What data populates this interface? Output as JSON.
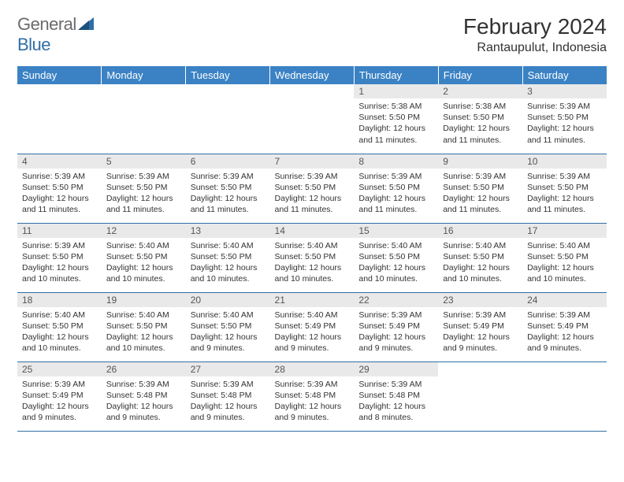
{
  "brand": {
    "part1": "General",
    "part2": "Blue"
  },
  "title": "February 2024",
  "location": "Rantaupulut, Indonesia",
  "colors": {
    "header_bg": "#3b82c4",
    "rule": "#2f6fa8",
    "daynum_bg": "#e9e9e9",
    "text": "#333333",
    "brand_gray": "#6b6b6b",
    "brand_blue": "#2f6fa8"
  },
  "typography": {
    "title_fontsize": 28,
    "location_fontsize": 16,
    "weekday_fontsize": 13,
    "daynum_fontsize": 12,
    "body_fontsize": 10.5
  },
  "weekdays": [
    "Sunday",
    "Monday",
    "Tuesday",
    "Wednesday",
    "Thursday",
    "Friday",
    "Saturday"
  ],
  "weeks": [
    [
      null,
      null,
      null,
      null,
      {
        "n": "1",
        "sunrise": "Sunrise: 5:38 AM",
        "sunset": "Sunset: 5:50 PM",
        "daylight": "Daylight: 12 hours and 11 minutes."
      },
      {
        "n": "2",
        "sunrise": "Sunrise: 5:38 AM",
        "sunset": "Sunset: 5:50 PM",
        "daylight": "Daylight: 12 hours and 11 minutes."
      },
      {
        "n": "3",
        "sunrise": "Sunrise: 5:39 AM",
        "sunset": "Sunset: 5:50 PM",
        "daylight": "Daylight: 12 hours and 11 minutes."
      }
    ],
    [
      {
        "n": "4",
        "sunrise": "Sunrise: 5:39 AM",
        "sunset": "Sunset: 5:50 PM",
        "daylight": "Daylight: 12 hours and 11 minutes."
      },
      {
        "n": "5",
        "sunrise": "Sunrise: 5:39 AM",
        "sunset": "Sunset: 5:50 PM",
        "daylight": "Daylight: 12 hours and 11 minutes."
      },
      {
        "n": "6",
        "sunrise": "Sunrise: 5:39 AM",
        "sunset": "Sunset: 5:50 PM",
        "daylight": "Daylight: 12 hours and 11 minutes."
      },
      {
        "n": "7",
        "sunrise": "Sunrise: 5:39 AM",
        "sunset": "Sunset: 5:50 PM",
        "daylight": "Daylight: 12 hours and 11 minutes."
      },
      {
        "n": "8",
        "sunrise": "Sunrise: 5:39 AM",
        "sunset": "Sunset: 5:50 PM",
        "daylight": "Daylight: 12 hours and 11 minutes."
      },
      {
        "n": "9",
        "sunrise": "Sunrise: 5:39 AM",
        "sunset": "Sunset: 5:50 PM",
        "daylight": "Daylight: 12 hours and 11 minutes."
      },
      {
        "n": "10",
        "sunrise": "Sunrise: 5:39 AM",
        "sunset": "Sunset: 5:50 PM",
        "daylight": "Daylight: 12 hours and 11 minutes."
      }
    ],
    [
      {
        "n": "11",
        "sunrise": "Sunrise: 5:39 AM",
        "sunset": "Sunset: 5:50 PM",
        "daylight": "Daylight: 12 hours and 10 minutes."
      },
      {
        "n": "12",
        "sunrise": "Sunrise: 5:40 AM",
        "sunset": "Sunset: 5:50 PM",
        "daylight": "Daylight: 12 hours and 10 minutes."
      },
      {
        "n": "13",
        "sunrise": "Sunrise: 5:40 AM",
        "sunset": "Sunset: 5:50 PM",
        "daylight": "Daylight: 12 hours and 10 minutes."
      },
      {
        "n": "14",
        "sunrise": "Sunrise: 5:40 AM",
        "sunset": "Sunset: 5:50 PM",
        "daylight": "Daylight: 12 hours and 10 minutes."
      },
      {
        "n": "15",
        "sunrise": "Sunrise: 5:40 AM",
        "sunset": "Sunset: 5:50 PM",
        "daylight": "Daylight: 12 hours and 10 minutes."
      },
      {
        "n": "16",
        "sunrise": "Sunrise: 5:40 AM",
        "sunset": "Sunset: 5:50 PM",
        "daylight": "Daylight: 12 hours and 10 minutes."
      },
      {
        "n": "17",
        "sunrise": "Sunrise: 5:40 AM",
        "sunset": "Sunset: 5:50 PM",
        "daylight": "Daylight: 12 hours and 10 minutes."
      }
    ],
    [
      {
        "n": "18",
        "sunrise": "Sunrise: 5:40 AM",
        "sunset": "Sunset: 5:50 PM",
        "daylight": "Daylight: 12 hours and 10 minutes."
      },
      {
        "n": "19",
        "sunrise": "Sunrise: 5:40 AM",
        "sunset": "Sunset: 5:50 PM",
        "daylight": "Daylight: 12 hours and 10 minutes."
      },
      {
        "n": "20",
        "sunrise": "Sunrise: 5:40 AM",
        "sunset": "Sunset: 5:50 PM",
        "daylight": "Daylight: 12 hours and 9 minutes."
      },
      {
        "n": "21",
        "sunrise": "Sunrise: 5:40 AM",
        "sunset": "Sunset: 5:49 PM",
        "daylight": "Daylight: 12 hours and 9 minutes."
      },
      {
        "n": "22",
        "sunrise": "Sunrise: 5:39 AM",
        "sunset": "Sunset: 5:49 PM",
        "daylight": "Daylight: 12 hours and 9 minutes."
      },
      {
        "n": "23",
        "sunrise": "Sunrise: 5:39 AM",
        "sunset": "Sunset: 5:49 PM",
        "daylight": "Daylight: 12 hours and 9 minutes."
      },
      {
        "n": "24",
        "sunrise": "Sunrise: 5:39 AM",
        "sunset": "Sunset: 5:49 PM",
        "daylight": "Daylight: 12 hours and 9 minutes."
      }
    ],
    [
      {
        "n": "25",
        "sunrise": "Sunrise: 5:39 AM",
        "sunset": "Sunset: 5:49 PM",
        "daylight": "Daylight: 12 hours and 9 minutes."
      },
      {
        "n": "26",
        "sunrise": "Sunrise: 5:39 AM",
        "sunset": "Sunset: 5:48 PM",
        "daylight": "Daylight: 12 hours and 9 minutes."
      },
      {
        "n": "27",
        "sunrise": "Sunrise: 5:39 AM",
        "sunset": "Sunset: 5:48 PM",
        "daylight": "Daylight: 12 hours and 9 minutes."
      },
      {
        "n": "28",
        "sunrise": "Sunrise: 5:39 AM",
        "sunset": "Sunset: 5:48 PM",
        "daylight": "Daylight: 12 hours and 9 minutes."
      },
      {
        "n": "29",
        "sunrise": "Sunrise: 5:39 AM",
        "sunset": "Sunset: 5:48 PM",
        "daylight": "Daylight: 12 hours and 8 minutes."
      },
      null,
      null
    ]
  ]
}
